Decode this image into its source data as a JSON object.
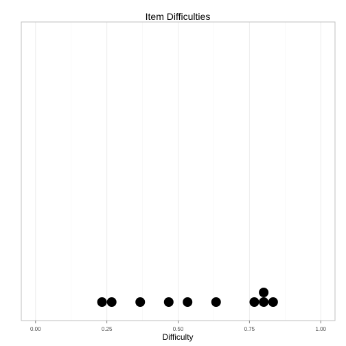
{
  "chart_data": {
    "type": "scatter",
    "title": "Item Difficulties",
    "xlabel": "Difficulty",
    "ylabel": "",
    "xlim": [
      -0.05,
      1.05
    ],
    "x_ticks": [
      0.0,
      0.25,
      0.5,
      0.75,
      1.0
    ],
    "x_tick_labels": [
      "0.00",
      "0.25",
      "0.50",
      "0.75",
      "1.00"
    ],
    "grid": true,
    "legend": "none",
    "point_color": "#000000",
    "points": [
      {
        "x": 0.233,
        "stack": 0
      },
      {
        "x": 0.267,
        "stack": 0
      },
      {
        "x": 0.367,
        "stack": 0
      },
      {
        "x": 0.467,
        "stack": 0
      },
      {
        "x": 0.533,
        "stack": 0
      },
      {
        "x": 0.633,
        "stack": 0
      },
      {
        "x": 0.767,
        "stack": 0
      },
      {
        "x": 0.8,
        "stack": 0
      },
      {
        "x": 0.8,
        "stack": 1
      },
      {
        "x": 0.833,
        "stack": 0
      }
    ]
  }
}
